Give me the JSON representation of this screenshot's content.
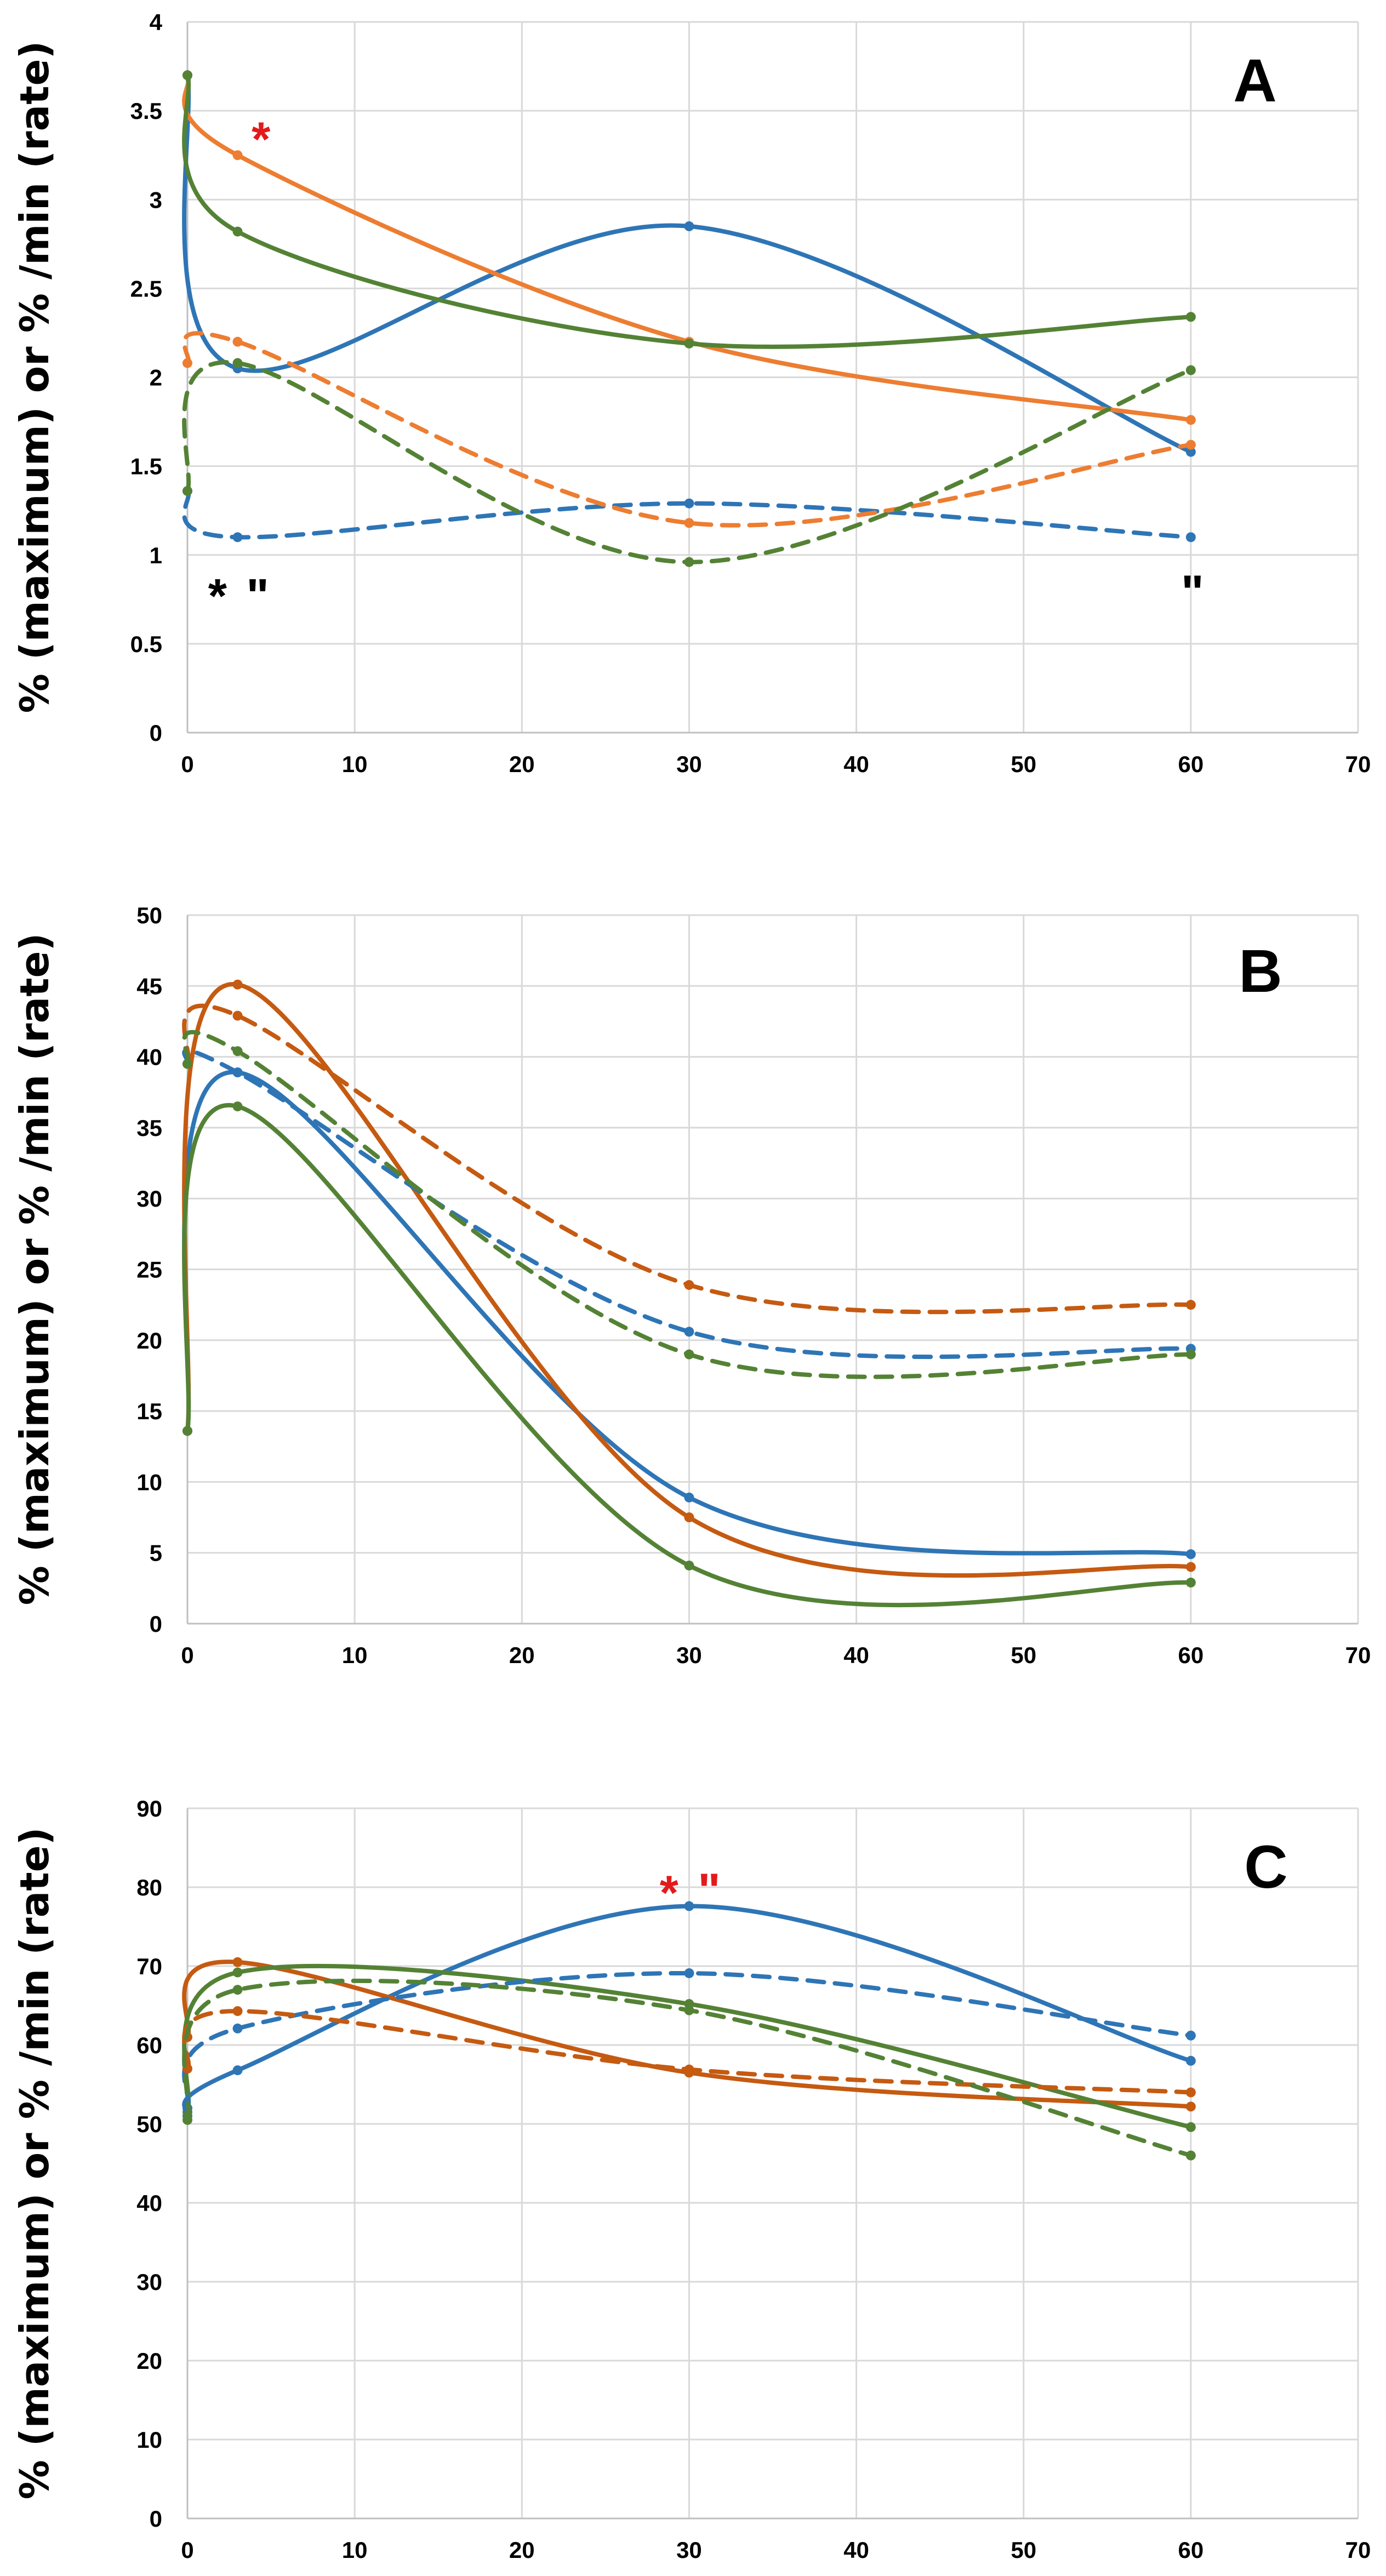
{
  "colors": {
    "blue": "#2e75b6",
    "orange_A": "#ed7d31",
    "orange": "#c55a11",
    "green": "#548235",
    "red": "#e31a1c",
    "black": "#000000"
  },
  "chart_data": [
    {
      "type": "line",
      "panel_label": "A",
      "ylabel": "% (maximum) or % /min (rate)",
      "xlabel": "",
      "xlim": [
        0,
        70
      ],
      "ylim": [
        0,
        4
      ],
      "xticks": [
        "0",
        "10",
        "20",
        "30",
        "40",
        "50",
        "60",
        "70"
      ],
      "yticks": [
        "0",
        "0.5",
        "1",
        "1.5",
        "2",
        "2.5",
        "3",
        "3.5",
        "4"
      ],
      "x": [
        0,
        3,
        30,
        60
      ],
      "series": [
        {
          "name": "blue solid",
          "color": "blue",
          "dash": false,
          "values": [
            3.7,
            2.05,
            2.85,
            1.58
          ]
        },
        {
          "name": "orange solid",
          "color": "orange_A",
          "dash": false,
          "values": [
            3.7,
            3.25,
            2.2,
            1.76
          ]
        },
        {
          "name": "green solid",
          "color": "green",
          "dash": false,
          "values": [
            3.7,
            2.82,
            2.19,
            2.34
          ]
        },
        {
          "name": "blue dashed",
          "color": "blue",
          "dash": true,
          "values": [
            1.36,
            1.1,
            1.29,
            1.1
          ]
        },
        {
          "name": "orange dashed",
          "color": "orange_A",
          "dash": true,
          "values": [
            2.08,
            2.2,
            1.18,
            1.62
          ]
        },
        {
          "name": "green dashed",
          "color": "green",
          "dash": true,
          "values": [
            1.36,
            2.08,
            0.96,
            2.04
          ]
        }
      ],
      "annotations": [
        {
          "text": "*",
          "color": "red",
          "x": 4.4,
          "y": 3.34
        },
        {
          "text": "*",
          "color": "black",
          "x": 1.8,
          "y": 0.77
        },
        {
          "text": "\"",
          "color": "black",
          "x": 4.2,
          "y": 0.77
        },
        {
          "text": "\"",
          "color": "black",
          "x": 60.1,
          "y": 0.79
        }
      ]
    },
    {
      "type": "line",
      "panel_label": "B",
      "ylabel": "% (maximum) or % /min (rate)",
      "xlabel": "",
      "xlim": [
        0,
        70
      ],
      "ylim": [
        0,
        50
      ],
      "xticks": [
        "0",
        "10",
        "20",
        "30",
        "40",
        "50",
        "60",
        "70"
      ],
      "yticks": [
        "0",
        "5",
        "10",
        "15",
        "20",
        "25",
        "30",
        "35",
        "40",
        "45",
        "50"
      ],
      "x": [
        0,
        3,
        30,
        60
      ],
      "series": [
        {
          "name": "blue solid",
          "color": "blue",
          "dash": false,
          "values": [
            13.6,
            38.9,
            8.9,
            4.9
          ]
        },
        {
          "name": "orange solid",
          "color": "orange",
          "dash": false,
          "values": [
            13.6,
            45.1,
            7.5,
            4.0
          ]
        },
        {
          "name": "green solid",
          "color": "green",
          "dash": false,
          "values": [
            13.6,
            36.5,
            4.1,
            2.9
          ]
        },
        {
          "name": "blue dashed",
          "color": "blue",
          "dash": true,
          "values": [
            39.5,
            38.9,
            20.6,
            19.4
          ]
        },
        {
          "name": "orange dashed",
          "color": "orange",
          "dash": true,
          "values": [
            39.5,
            42.9,
            23.9,
            22.5
          ]
        },
        {
          "name": "green dashed",
          "color": "green",
          "dash": true,
          "values": [
            39.5,
            40.4,
            19.0,
            19.0
          ]
        }
      ],
      "annotations": []
    },
    {
      "type": "line",
      "panel_label": "C",
      "ylabel": "% (maximum) or % /min (rate)",
      "xlabel": "",
      "xlim": [
        0,
        70
      ],
      "ylim": [
        0,
        90
      ],
      "xticks": [
        "0",
        "10",
        "20",
        "30",
        "40",
        "50",
        "60",
        "70"
      ],
      "yticks": [
        "0",
        "10",
        "20",
        "30",
        "40",
        "50",
        "60",
        "70",
        "80",
        "90"
      ],
      "x": [
        0,
        3,
        30,
        60
      ],
      "series": [
        {
          "name": "blue solid",
          "color": "blue",
          "dash": false,
          "values": [
            51,
            56.8,
            77.6,
            58.0
          ]
        },
        {
          "name": "orange solid",
          "color": "orange",
          "dash": false,
          "values": [
            61,
            70.5,
            56.5,
            52.2
          ]
        },
        {
          "name": "green solid",
          "color": "green",
          "dash": false,
          "values": [
            51.5,
            69.2,
            65.2,
            49.6
          ]
        },
        {
          "name": "blue dashed",
          "color": "blue",
          "dash": true,
          "values": [
            52,
            62.1,
            69.1,
            61.2
          ]
        },
        {
          "name": "orange dashed",
          "color": "orange",
          "dash": true,
          "values": [
            57,
            64.3,
            56.9,
            54.0
          ]
        },
        {
          "name": "green dashed",
          "color": "green",
          "dash": true,
          "values": [
            50.5,
            67.0,
            64.4,
            46.0
          ]
        }
      ],
      "annotations": [
        {
          "text": "*",
          "color": "red",
          "x": 28.8,
          "y": 79.3
        },
        {
          "text": "\"",
          "color": "red",
          "x": 31.2,
          "y": 79.6
        }
      ]
    }
  ]
}
